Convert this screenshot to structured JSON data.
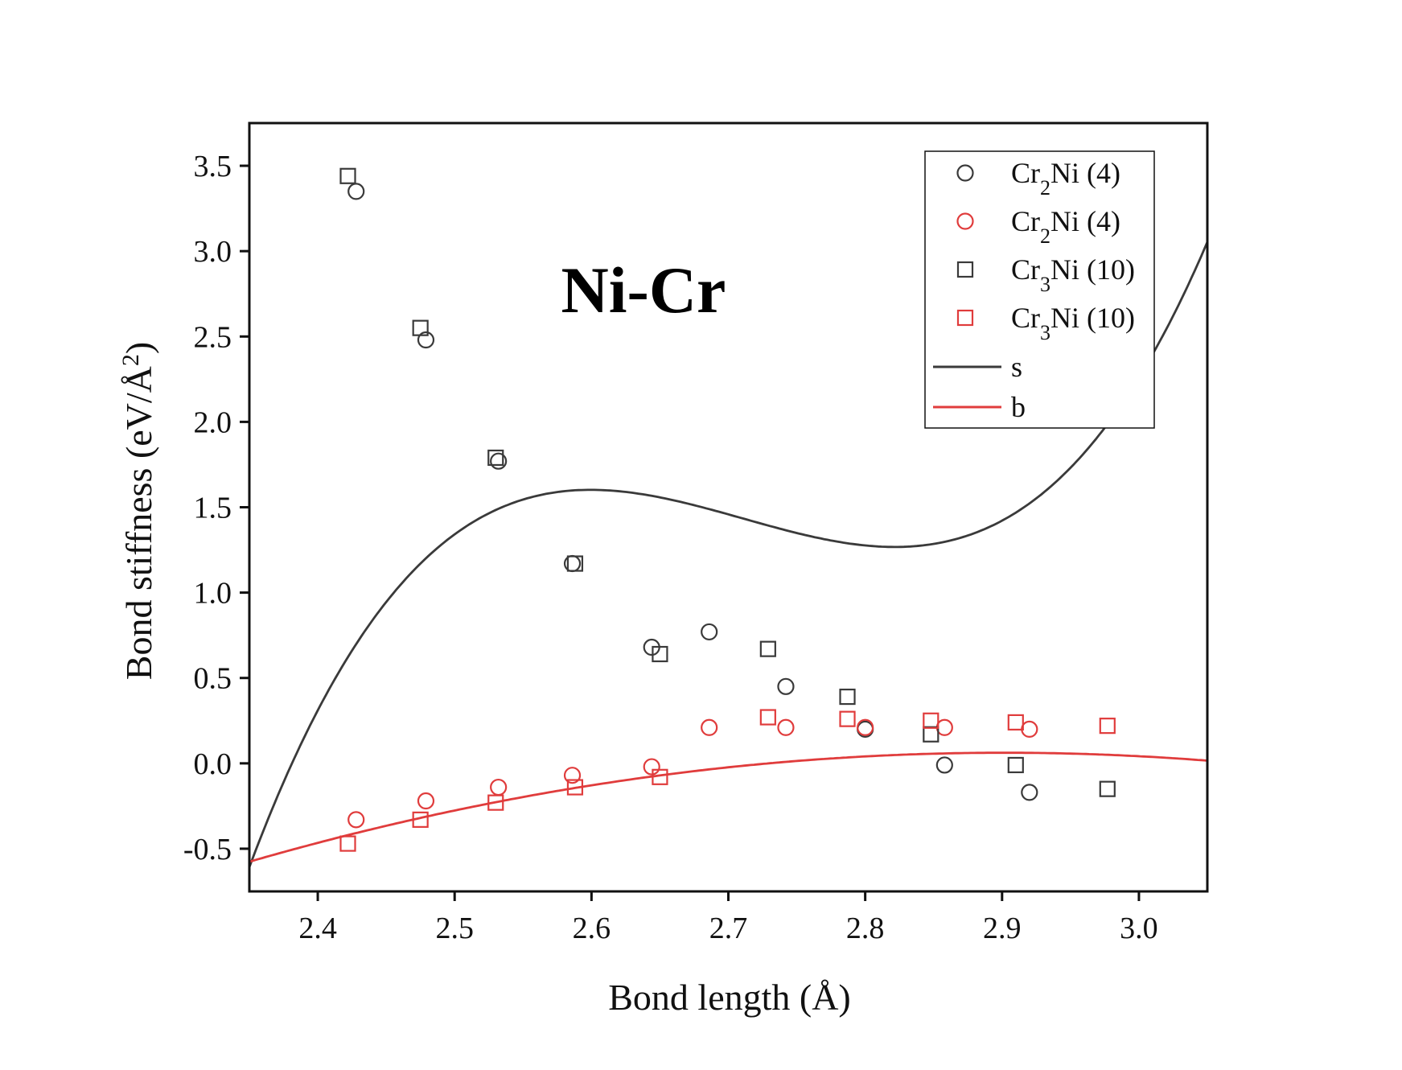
{
  "chart_data": {
    "type": "scatter",
    "title": "",
    "annotation": "Ni-Cr",
    "xlabel": "Bond length (Å)",
    "ylabel": {
      "prefix": "Bond stiffness (eV/Å",
      "sup": "2",
      "suffix": ")"
    },
    "xlim": [
      2.35,
      3.05
    ],
    "ylim": [
      -0.75,
      3.75
    ],
    "xticks": [
      2.4,
      2.5,
      2.6,
      2.7,
      2.8,
      2.9,
      3.0
    ],
    "xtick_labels": [
      "2.4",
      "2.5",
      "2.6",
      "2.7",
      "2.8",
      "2.9",
      "3.0"
    ],
    "yticks": [
      -0.5,
      0.0,
      0.5,
      1.0,
      1.5,
      2.0,
      2.5,
      3.0,
      3.5
    ],
    "ytick_labels": [
      "-0.5",
      "0.0",
      "0.5",
      "1.0",
      "1.5",
      "2.0",
      "2.5",
      "3.0",
      "3.5"
    ],
    "legend_position": "top-right",
    "series": [
      {
        "name": "Cr2Ni (4) s",
        "label": {
          "pre": "Cr",
          "sub": "2",
          "post": "Ni (4)"
        },
        "marker": "circle",
        "color": "#3a3a3a",
        "x": [
          2.428,
          2.479,
          2.532,
          2.586,
          2.644,
          2.686,
          2.742,
          2.8,
          2.858,
          2.92
        ],
        "y": [
          3.35,
          2.48,
          1.77,
          1.17,
          0.68,
          0.77,
          0.45,
          0.2,
          -0.01,
          -0.17
        ]
      },
      {
        "name": "Cr2Ni (4) b",
        "label": {
          "pre": "Cr",
          "sub": "2",
          "post": "Ni (4)"
        },
        "marker": "circle",
        "color": "#e03c3c",
        "x": [
          2.428,
          2.479,
          2.532,
          2.586,
          2.644,
          2.686,
          2.742,
          2.8,
          2.858,
          2.92
        ],
        "y": [
          -0.33,
          -0.22,
          -0.14,
          -0.07,
          -0.02,
          0.21,
          0.21,
          0.21,
          0.21,
          0.2
        ]
      },
      {
        "name": "Cr3Ni (10) s",
        "label": {
          "pre": "Cr",
          "sub": "3",
          "post": "Ni (10)"
        },
        "marker": "square",
        "color": "#3a3a3a",
        "x": [
          2.422,
          2.475,
          2.53,
          2.588,
          2.65,
          2.729,
          2.787,
          2.848,
          2.91,
          2.977
        ],
        "y": [
          3.44,
          2.55,
          1.79,
          1.17,
          0.64,
          0.67,
          0.39,
          0.17,
          -0.01,
          -0.15
        ]
      },
      {
        "name": "Cr3Ni (10) b",
        "label": {
          "pre": "Cr",
          "sub": "3",
          "post": "Ni (10)"
        },
        "marker": "square",
        "color": "#e03c3c",
        "x": [
          2.422,
          2.475,
          2.53,
          2.588,
          2.65,
          2.729,
          2.787,
          2.848,
          2.91,
          2.977
        ],
        "y": [
          -0.47,
          -0.33,
          -0.23,
          -0.14,
          -0.08,
          0.27,
          0.26,
          0.25,
          0.24,
          0.22
        ]
      }
    ],
    "fits": [
      {
        "name": "s",
        "color": "#3a3a3a",
        "model": "cubic",
        "coefficients": [
          -1206.59,
          1341.56,
          -495.78,
          60.97
        ]
      },
      {
        "name": "b",
        "color": "#e03c3c",
        "model": "quadratic",
        "coefficients": [
          -17.6,
          12.174,
          -2.0978
        ]
      }
    ]
  }
}
